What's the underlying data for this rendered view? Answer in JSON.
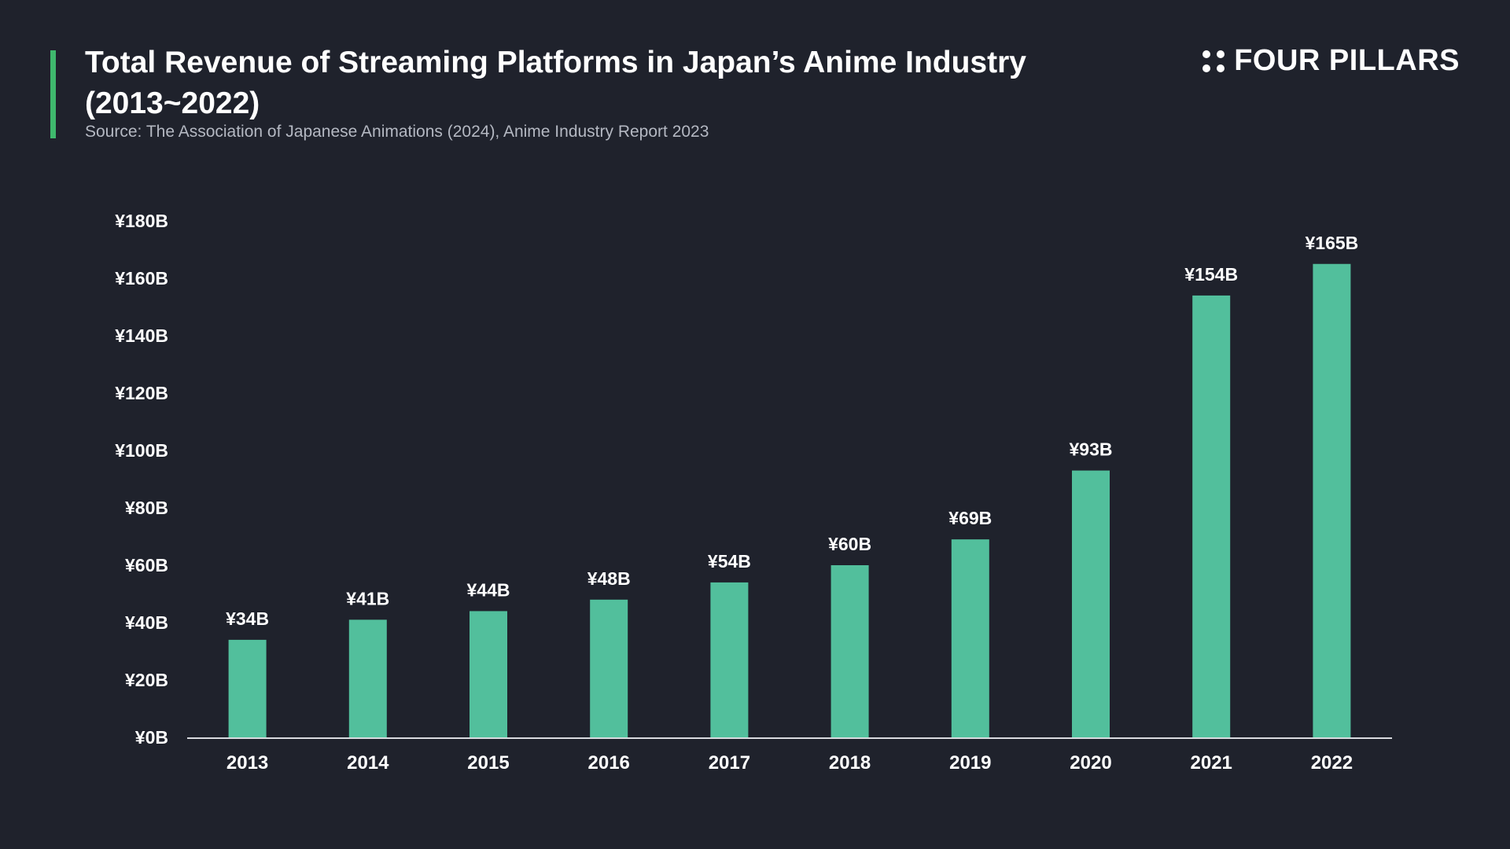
{
  "header": {
    "title": "Total Revenue of Streaming Platforms in Japan’s Anime Industry (2013~2022)",
    "subtitle": "Source: The Association of Japanese Animations (2024), Anime Industry Report 2023",
    "brand_name": "FOUR PILLARS",
    "brand_icon": "four-dots-icon"
  },
  "colors": {
    "background": "#1f222c",
    "bar": "#52bf9c",
    "accent": "#3fb86d",
    "axis": "#d9dbe0",
    "text": "#ffffff",
    "subtitle": "#b4b8c2"
  },
  "chart_data": {
    "type": "bar",
    "title": "Total Revenue of Streaming Platforms in Japan’s Anime Industry (2013~2022)",
    "subtitle": "Source: The Association of Japanese Animations (2024), Anime Industry Report 2023",
    "xlabel": "",
    "ylabel": "",
    "categories": [
      "2013",
      "2014",
      "2015",
      "2016",
      "2017",
      "2018",
      "2019",
      "2020",
      "2021",
      "2022"
    ],
    "values": [
      34,
      41,
      44,
      48,
      54,
      60,
      69,
      93,
      154,
      165
    ],
    "data_labels": [
      "¥34B",
      "¥41B",
      "¥44B",
      "¥48B",
      "¥54B",
      "¥60B",
      "¥69B",
      "¥93B",
      "¥154B",
      "¥165B"
    ],
    "ylim": [
      0,
      180
    ],
    "y_ticks": [
      0,
      20,
      40,
      60,
      80,
      100,
      120,
      140,
      160,
      180
    ],
    "y_tick_labels": [
      "¥0B",
      "¥20B",
      "¥40B",
      "¥60B",
      "¥80B",
      "¥100B",
      "¥120B",
      "¥140B",
      "¥160B",
      "¥180B"
    ],
    "grid": false,
    "legend": "none"
  }
}
